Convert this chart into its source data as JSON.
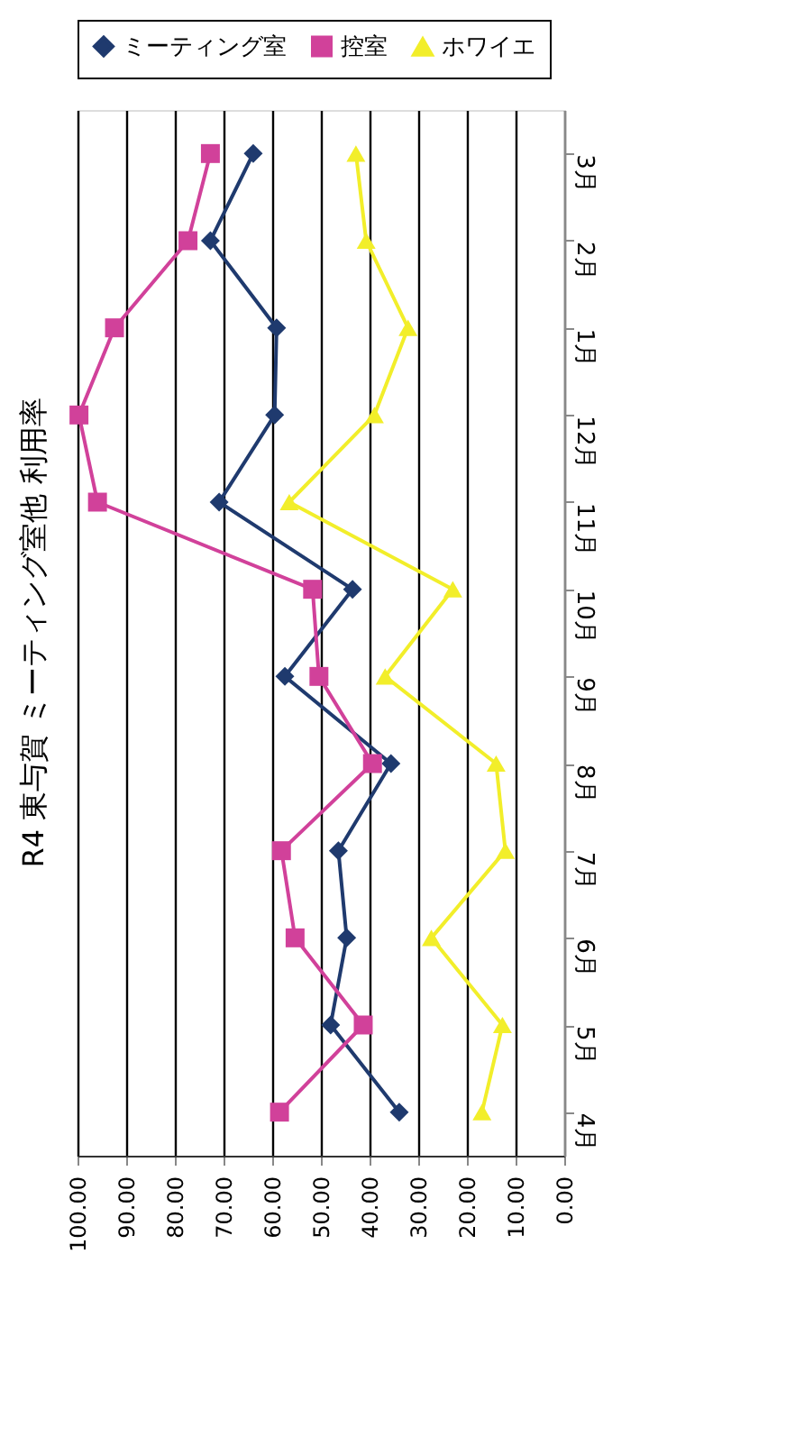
{
  "chart_data": {
    "type": "line",
    "title": "R4 東与賀 ミーティング室他 利用率",
    "orientation": "horizontal",
    "categories": [
      "3月",
      "2月",
      "1月",
      "12月",
      "11月",
      "10月",
      "9月",
      "8月",
      "7月",
      "6月",
      "5月",
      "4月"
    ],
    "series": [
      {
        "name": "ミーティング室",
        "color": "#1f3a6e",
        "marker": "diamond",
        "values": [
          63.9,
          72.7,
          59.1,
          59.5,
          70.9,
          43.5,
          57.4,
          35.6,
          46.4,
          44.7,
          48.0,
          33.9
        ]
      },
      {
        "name": "控室",
        "color": "#d1419a",
        "marker": "square",
        "values": [
          72.7,
          77.3,
          92.4,
          99.7,
          95.9,
          51.7,
          50.4,
          39.4,
          58.1,
          55.3,
          41.3,
          58.5
        ]
      },
      {
        "name": "ホワイエ",
        "color": "#f2ee2a",
        "marker": "triangle",
        "values": [
          42.8,
          40.7,
          32.1,
          39.0,
          56.5,
          22.9,
          36.8,
          14.0,
          12.1,
          27.3,
          12.7,
          16.9
        ]
      }
    ],
    "xlim": [
      100,
      0
    ],
    "xticks": [
      {
        "value": 100,
        "label": "100.00"
      },
      {
        "value": 90,
        "label": "90.00"
      },
      {
        "value": 80,
        "label": "80.00"
      },
      {
        "value": 70,
        "label": "70.00"
      },
      {
        "value": 60,
        "label": "60.00"
      },
      {
        "value": 50,
        "label": "50.00"
      },
      {
        "value": 40,
        "label": "40.00"
      },
      {
        "value": 30,
        "label": "30.00"
      },
      {
        "value": 20,
        "label": "20.00"
      },
      {
        "value": 10,
        "label": "10.00"
      },
      {
        "value": 0,
        "label": "0.00"
      }
    ],
    "grid": "x",
    "legend": "top",
    "line_style": "solid"
  }
}
